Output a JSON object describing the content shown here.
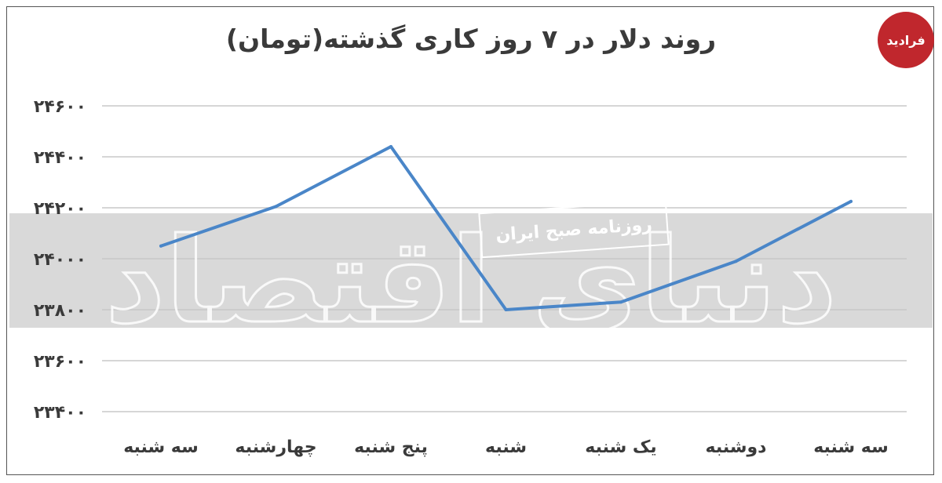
{
  "logo": {
    "text": "فرادید"
  },
  "watermark": {
    "main": "دنیای اقتصاد",
    "stamp": "روزنامه صبح ایران"
  },
  "colors": {
    "line": "#4a86c8",
    "grid": "#c8c8c8",
    "band": "#d9d9d9",
    "text": "#3a3a3a",
    "logo": "#c0272d"
  },
  "chart_data": {
    "type": "line",
    "title": "روند دلار در ۷ روز کاری گذشته(تومان)",
    "categories": [
      "سه شنبه",
      "چهارشنبه",
      "پنج شنبه",
      "شنبه",
      "یک شنبه",
      "دوشنبه",
      "سه شنبه"
    ],
    "y_tick_labels": [
      "۲۴۶۰۰",
      "۲۴۴۰۰",
      "۲۴۲۰۰",
      "۲۴۰۰۰",
      "۲۳۸۰۰",
      "۲۳۶۰۰",
      "۲۳۴۰۰"
    ],
    "y_ticks": [
      24600,
      24400,
      24200,
      24000,
      23800,
      23600,
      23400
    ],
    "ylim": [
      23400,
      24600
    ],
    "series": [
      {
        "values": [
          24050,
          24205,
          24440,
          23800,
          23830,
          23990,
          24225
        ]
      }
    ],
    "grid": true,
    "legend": "none"
  }
}
